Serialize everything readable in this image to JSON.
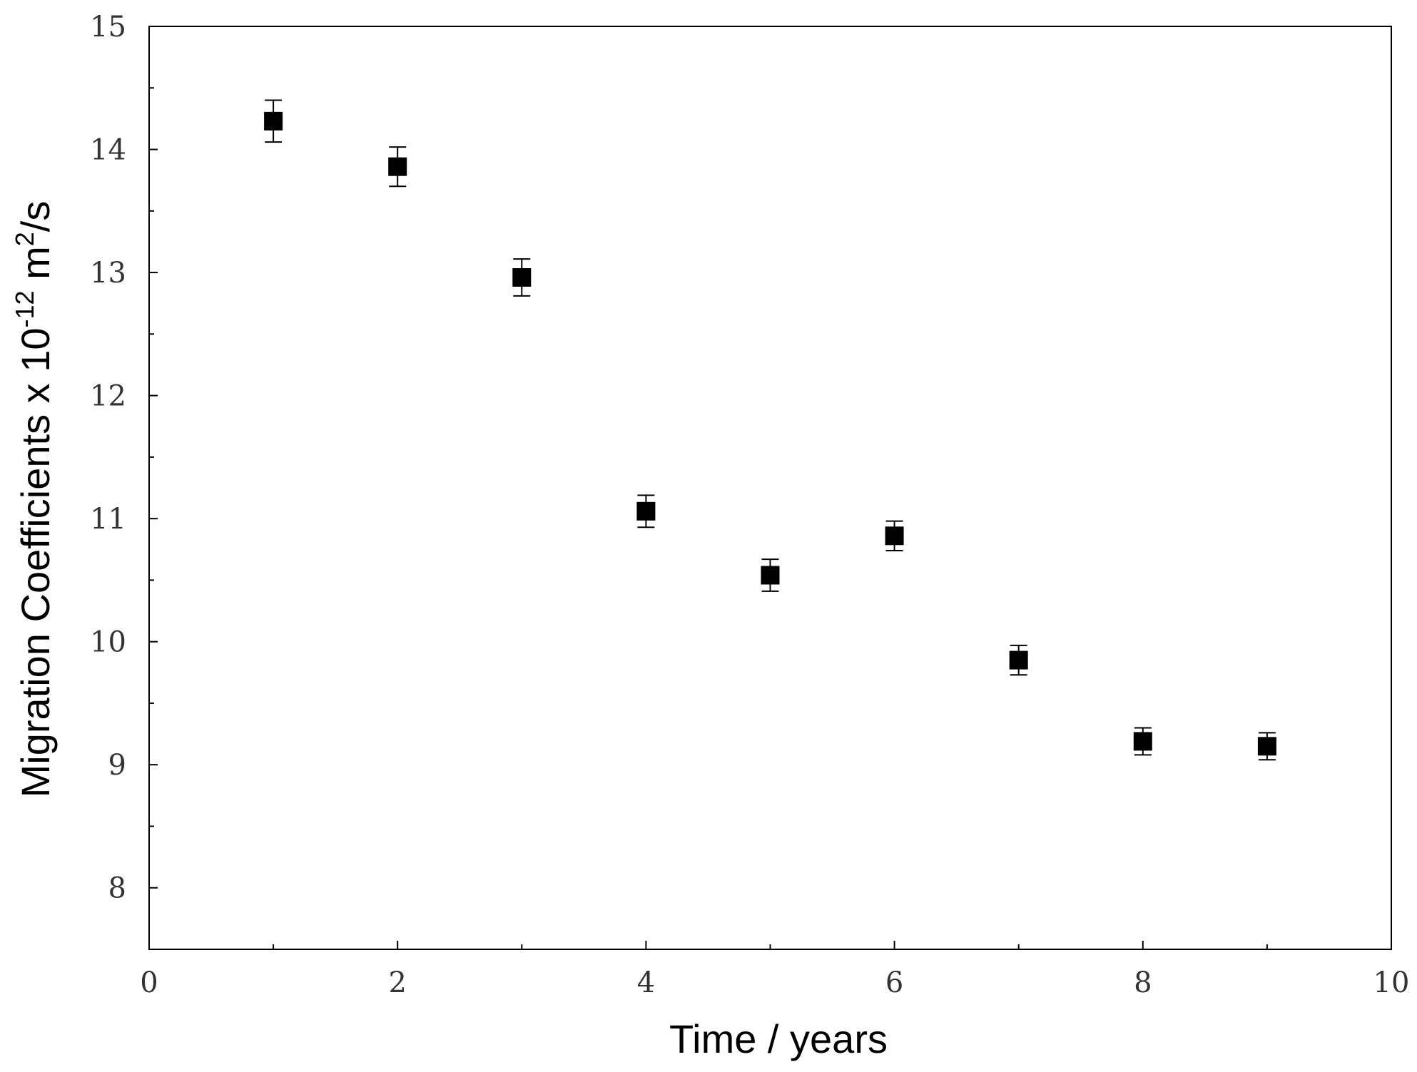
{
  "chart_data": {
    "type": "scatter",
    "xlabel": "Time / years",
    "ylabel": {
      "main": "Migration Coefficients x 10",
      "exp": "-12",
      "unit": " m",
      "unit_exp": "2",
      "unit_tail": "/s"
    },
    "xlim": [
      0,
      10
    ],
    "ylim": [
      7.5,
      15
    ],
    "xticks": [
      0,
      2,
      4,
      6,
      8,
      10
    ],
    "xminor": [
      1,
      3,
      5,
      7,
      9
    ],
    "yticks": [
      8,
      9,
      10,
      11,
      12,
      13,
      14,
      15
    ],
    "yminor": [
      8.5,
      9.5,
      10.5,
      11.5,
      12.5,
      13.5,
      14.5
    ],
    "grid": false,
    "marker": "filled-square",
    "marker_color": "#000000",
    "series": [
      {
        "x": [
          1,
          2,
          3,
          4,
          5,
          6,
          7,
          8,
          9
        ],
        "y": [
          14.23,
          13.86,
          12.96,
          11.06,
          10.54,
          10.86,
          9.85,
          9.19,
          9.15
        ],
        "yerr": [
          0.17,
          0.16,
          0.15,
          0.13,
          0.13,
          0.12,
          0.12,
          0.11,
          0.11
        ]
      }
    ]
  }
}
